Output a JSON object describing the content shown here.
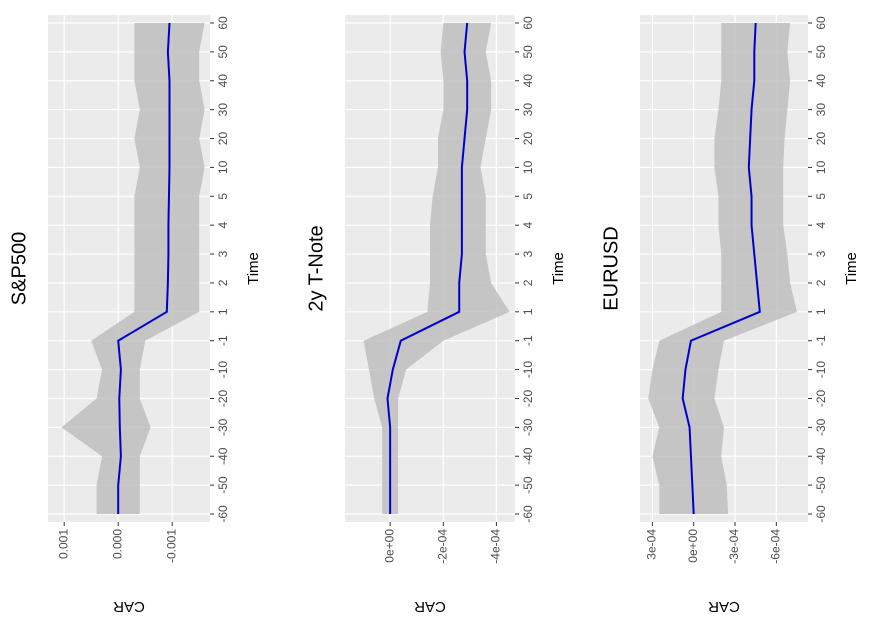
{
  "chart_data": [
    {
      "type": "line",
      "title": "S&P500",
      "x_label": "Time",
      "y_label": "CAR",
      "categories": [
        -60,
        -50,
        -40,
        -30,
        -20,
        -10,
        -1,
        1,
        2,
        3,
        4,
        5,
        10,
        20,
        30,
        40,
        50,
        60
      ],
      "values": [
        0,
        0,
        -5e-05,
        -3e-05,
        -2e-05,
        -5e-05,
        0,
        -0.0009,
        -0.00092,
        -0.00093,
        -0.00093,
        -0.00094,
        -0.00095,
        -0.00095,
        -0.00095,
        -0.00095,
        -0.00092,
        -0.00095
      ],
      "upper": [
        0.0004,
        0.0004,
        0.0003,
        0.00105,
        0.0004,
        0.0003,
        0.0005,
        -0.0003,
        -0.0003,
        -0.0003,
        -0.0003,
        -0.0003,
        -0.0004,
        -0.0003,
        -0.0004,
        -0.0003,
        -0.0003,
        -0.0003
      ],
      "lower": [
        -0.0004,
        -0.0004,
        -0.0004,
        -0.0006,
        -0.0004,
        -0.0004,
        -0.0005,
        -0.0015,
        -0.0015,
        -0.0015,
        -0.0015,
        -0.0015,
        -0.0016,
        -0.0015,
        -0.0016,
        -0.0015,
        -0.0015,
        -0.0016
      ],
      "color": "#0000cc",
      "band_color": "#bebebe",
      "ylim": [
        -0.0017,
        0.0013
      ],
      "yticks": [
        0.001,
        {
          "value": 0,
          "label": "0.000"
        },
        -0.001
      ],
      "grid": true
    },
    {
      "type": "line",
      "title": "2y T-Note",
      "x_label": "Time",
      "y_label": "CAR",
      "categories": [
        -60,
        -50,
        -40,
        -30,
        -20,
        -10,
        -1,
        1,
        2,
        3,
        4,
        5,
        10,
        20,
        30,
        40,
        50,
        60
      ],
      "values": [
        0,
        0,
        0,
        0,
        1e-05,
        -1e-05,
        -4e-05,
        -0.00026,
        -0.00026,
        -0.00027,
        -0.00027,
        -0.00027,
        -0.00027,
        -0.00028,
        -0.00029,
        -0.00029,
        -0.00028,
        -0.00029
      ],
      "upper": [
        3e-05,
        3e-05,
        3e-05,
        3e-05,
        6e-05,
        8e-05,
        0.0001,
        -0.00014,
        -0.00015,
        -0.00015,
        -0.00015,
        -0.00016,
        -0.00018,
        -0.00018,
        -0.0002,
        -0.0002,
        -0.00019,
        -0.0002
      ],
      "lower": [
        -3e-05,
        -3e-05,
        -3e-05,
        -3e-05,
        -3e-05,
        -6e-05,
        -0.0002,
        -0.00045,
        -0.00038,
        -0.00036,
        -0.00036,
        -0.00036,
        -0.00034,
        -0.00036,
        -0.00038,
        -0.00038,
        -0.00036,
        -0.00038
      ],
      "color": "#0000cc",
      "band_color": "#bebebe",
      "ylim": [
        -0.00047,
        0.00017
      ],
      "yticks": [
        {
          "value": 0,
          "label": "0e+00"
        },
        {
          "value": -0.0002,
          "label": "-2e-04"
        },
        {
          "value": -0.0004,
          "label": "-4e-04"
        }
      ],
      "grid": true
    },
    {
      "type": "line",
      "title": "EURUSD",
      "x_label": "Time",
      "y_label": "CAR",
      "categories": [
        -60,
        -50,
        -40,
        -30,
        -20,
        -10,
        -1,
        1,
        2,
        3,
        4,
        5,
        10,
        20,
        30,
        40,
        50,
        60
      ],
      "values": [
        0,
        1e-05,
        2e-05,
        3e-05,
        8e-05,
        6e-05,
        2e-05,
        -0.00048,
        -0.00046,
        -0.00044,
        -0.00042,
        -0.00042,
        -0.0004,
        -0.00041,
        -0.00042,
        -0.00044,
        -0.00044,
        -0.00045
      ],
      "upper": [
        0.00025,
        0.00025,
        0.0003,
        0.00025,
        0.00033,
        0.0003,
        0.00025,
        -0.0002,
        -0.0002,
        -0.0002,
        -0.00018,
        -0.00018,
        -0.00015,
        -0.00015,
        -0.00018,
        -0.0002,
        -0.0002,
        -0.0002
      ],
      "lower": [
        -0.00025,
        -0.00024,
        -0.0002,
        -0.00022,
        -0.00015,
        -0.00018,
        -0.00022,
        -0.00075,
        -0.0007,
        -0.00068,
        -0.00065,
        -0.00065,
        -0.00065,
        -0.00066,
        -0.00068,
        -0.0007,
        -0.00068,
        -0.0007
      ],
      "color": "#0000cc",
      "band_color": "#bebebe",
      "ylim": [
        -0.00083,
        0.00039
      ],
      "yticks": [
        {
          "value": 0.0003,
          "label": "3e-04"
        },
        {
          "value": 0,
          "label": "0e+00"
        },
        {
          "value": -0.0003,
          "label": "-3e-04"
        },
        {
          "value": -0.0006,
          "label": "-6e-04"
        }
      ],
      "grid": true
    }
  ]
}
